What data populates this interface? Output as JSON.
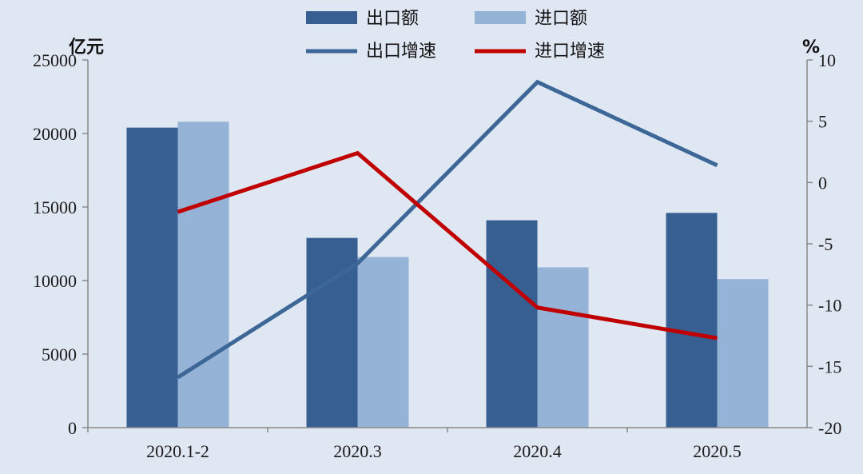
{
  "chart_data": {
    "type": "bar+line",
    "categories": [
      "2020.1-2",
      "2020.3",
      "2020.4",
      "2020.5"
    ],
    "series": [
      {
        "name": "出口额",
        "type": "bar",
        "axis": "left",
        "color": "#375f92",
        "values": [
          20400,
          12900,
          14100,
          14600
        ]
      },
      {
        "name": "进口额",
        "type": "bar",
        "axis": "left",
        "color": "#95b3d7",
        "values": [
          20800,
          11600,
          10900,
          10100
        ]
      },
      {
        "name": "出口增速",
        "type": "line",
        "axis": "right",
        "color": "#3d6797",
        "values": [
          -15.9,
          -6.6,
          8.2,
          1.4
        ]
      },
      {
        "name": "进口增速",
        "type": "line",
        "axis": "right",
        "color": "#c00000",
        "values": [
          -2.4,
          2.4,
          -10.2,
          -12.7
        ]
      }
    ],
    "y_left": {
      "label": "亿元",
      "min": 0,
      "max": 25000,
      "ticks": [
        0,
        5000,
        10000,
        15000,
        20000,
        25000
      ]
    },
    "y_right": {
      "label": "%",
      "min": -20,
      "max": 10,
      "ticks": [
        -20,
        -15,
        -10,
        -5,
        0,
        5,
        10
      ]
    },
    "legend_position": "top",
    "grid": false,
    "background": "#dfe7f3"
  }
}
